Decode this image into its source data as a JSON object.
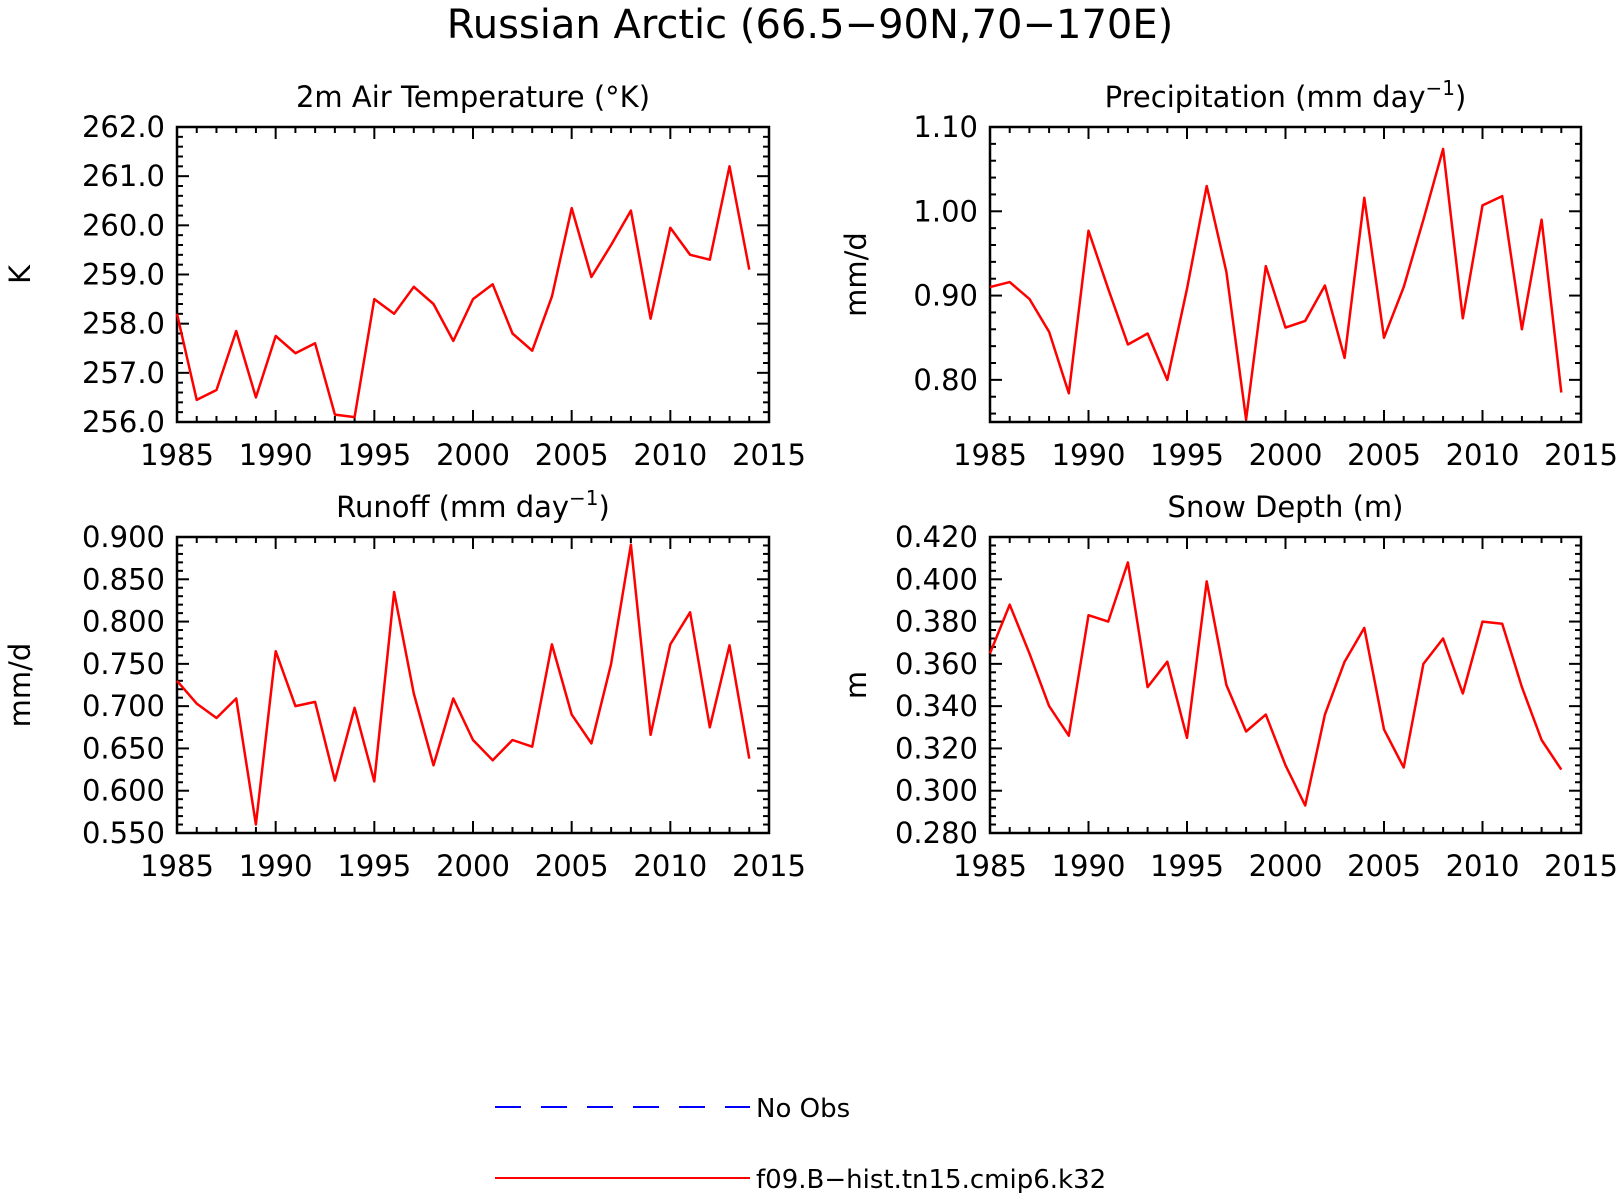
{
  "title": "Russian Arctic (66.5−90N,70−170E)",
  "legend": {
    "items": [
      {
        "label": "No Obs",
        "color": "#0000ff",
        "style": "dashed"
      },
      {
        "label": "f09.B−hist.tn15.cmip6.k32",
        "color": "#ff0000",
        "style": "solid"
      }
    ]
  },
  "chart_data": [
    {
      "type": "line",
      "title": "2m Air Temperature (°K)",
      "ylabel": "K",
      "xlim": [
        1985,
        2015
      ],
      "ylim": [
        256.0,
        262.0
      ],
      "x_ticks": [
        1985,
        1990,
        1995,
        2000,
        2005,
        2010,
        2015
      ],
      "y_ticks": [
        256.0,
        257.0,
        258.0,
        259.0,
        260.0,
        261.0,
        262.0
      ],
      "y_tick_labels": [
        "256.0",
        "257.0",
        "258.0",
        "259.0",
        "260.0",
        "261.0",
        "262.0"
      ],
      "grid": false,
      "x": [
        1985,
        1986,
        1987,
        1988,
        1989,
        1990,
        1991,
        1992,
        1993,
        1994,
        1995,
        1996,
        1997,
        1998,
        1999,
        2000,
        2001,
        2002,
        2003,
        2004,
        2005,
        2006,
        2007,
        2008,
        2009,
        2010,
        2011,
        2012,
        2013,
        2014
      ],
      "series": [
        {
          "color": "#ff0000",
          "values": [
            258.2,
            256.45,
            256.65,
            257.85,
            256.5,
            257.75,
            257.4,
            257.6,
            256.15,
            256.1,
            258.5,
            258.2,
            258.75,
            258.4,
            257.65,
            258.5,
            258.8,
            257.8,
            257.45,
            258.55,
            260.35,
            258.95,
            259.6,
            260.3,
            258.1,
            259.95,
            259.4,
            259.3,
            261.2,
            259.1
          ]
        }
      ]
    },
    {
      "type": "line",
      "title": "Precipitation (mm day",
      "title_sup": "−1",
      "title_tail": ")",
      "ylabel": "mm/d",
      "xlim": [
        1985,
        2015
      ],
      "ylim": [
        0.75,
        1.1
      ],
      "x_ticks": [
        1985,
        1990,
        1995,
        2000,
        2005,
        2010,
        2015
      ],
      "y_ticks": [
        0.8,
        0.9,
        1.0,
        1.1
      ],
      "y_tick_labels": [
        "0.80",
        "0.90",
        "1.00",
        "1.10"
      ],
      "grid": false,
      "x": [
        1985,
        1986,
        1987,
        1988,
        1989,
        1990,
        1991,
        1992,
        1993,
        1994,
        1995,
        1996,
        1997,
        1998,
        1999,
        2000,
        2001,
        2002,
        2003,
        2004,
        2005,
        2006,
        2007,
        2008,
        2009,
        2010,
        2011,
        2012,
        2013,
        2014
      ],
      "series": [
        {
          "color": "#ff0000",
          "values": [
            0.91,
            0.916,
            0.896,
            0.857,
            0.784,
            0.977,
            0.908,
            0.842,
            0.855,
            0.8,
            0.908,
            1.03,
            0.928,
            0.753,
            0.935,
            0.862,
            0.87,
            0.912,
            0.826,
            1.016,
            0.85,
            0.91,
            0.99,
            1.074,
            0.873,
            1.007,
            1.018,
            0.86,
            0.99,
            0.785
          ]
        }
      ]
    },
    {
      "type": "line",
      "title": "Runoff (mm day",
      "title_sup": "−1",
      "title_tail": ")",
      "ylabel": "mm/d",
      "xlim": [
        1985,
        2015
      ],
      "ylim": [
        0.55,
        0.9
      ],
      "x_ticks": [
        1985,
        1990,
        1995,
        2000,
        2005,
        2010,
        2015
      ],
      "y_ticks": [
        0.55,
        0.6,
        0.65,
        0.7,
        0.75,
        0.8,
        0.85,
        0.9
      ],
      "y_tick_labels": [
        "0.550",
        "0.600",
        "0.650",
        "0.700",
        "0.750",
        "0.800",
        "0.850",
        "0.900"
      ],
      "grid": false,
      "x": [
        1985,
        1986,
        1987,
        1988,
        1989,
        1990,
        1991,
        1992,
        1993,
        1994,
        1995,
        1996,
        1997,
        1998,
        1999,
        2000,
        2001,
        2002,
        2003,
        2004,
        2005,
        2006,
        2007,
        2008,
        2009,
        2010,
        2011,
        2012,
        2013,
        2014
      ],
      "series": [
        {
          "color": "#ff0000",
          "values": [
            0.73,
            0.703,
            0.686,
            0.709,
            0.56,
            0.765,
            0.7,
            0.705,
            0.612,
            0.698,
            0.611,
            0.835,
            0.715,
            0.63,
            0.709,
            0.66,
            0.636,
            0.66,
            0.652,
            0.773,
            0.69,
            0.656,
            0.75,
            0.891,
            0.666,
            0.773,
            0.811,
            0.675,
            0.772,
            0.638
          ]
        }
      ]
    },
    {
      "type": "line",
      "title": "Snow Depth (m)",
      "ylabel": "m",
      "xlim": [
        1985,
        2015
      ],
      "ylim": [
        0.28,
        0.42
      ],
      "x_ticks": [
        1985,
        1990,
        1995,
        2000,
        2005,
        2010,
        2015
      ],
      "y_ticks": [
        0.28,
        0.3,
        0.32,
        0.34,
        0.36,
        0.38,
        0.4,
        0.42
      ],
      "y_tick_labels": [
        "0.280",
        "0.300",
        "0.320",
        "0.340",
        "0.360",
        "0.380",
        "0.400",
        "0.420"
      ],
      "grid": false,
      "x": [
        1985,
        1986,
        1987,
        1988,
        1989,
        1990,
        1991,
        1992,
        1993,
        1994,
        1995,
        1996,
        1997,
        1998,
        1999,
        2000,
        2001,
        2002,
        2003,
        2004,
        2005,
        2006,
        2007,
        2008,
        2009,
        2010,
        2011,
        2012,
        2013,
        2014
      ],
      "series": [
        {
          "color": "#ff0000",
          "values": [
            0.365,
            0.388,
            0.365,
            0.34,
            0.326,
            0.383,
            0.38,
            0.408,
            0.349,
            0.361,
            0.325,
            0.399,
            0.35,
            0.328,
            0.336,
            0.312,
            0.293,
            0.336,
            0.361,
            0.377,
            0.329,
            0.311,
            0.36,
            0.372,
            0.346,
            0.38,
            0.379,
            0.349,
            0.324,
            0.31
          ]
        }
      ]
    }
  ]
}
